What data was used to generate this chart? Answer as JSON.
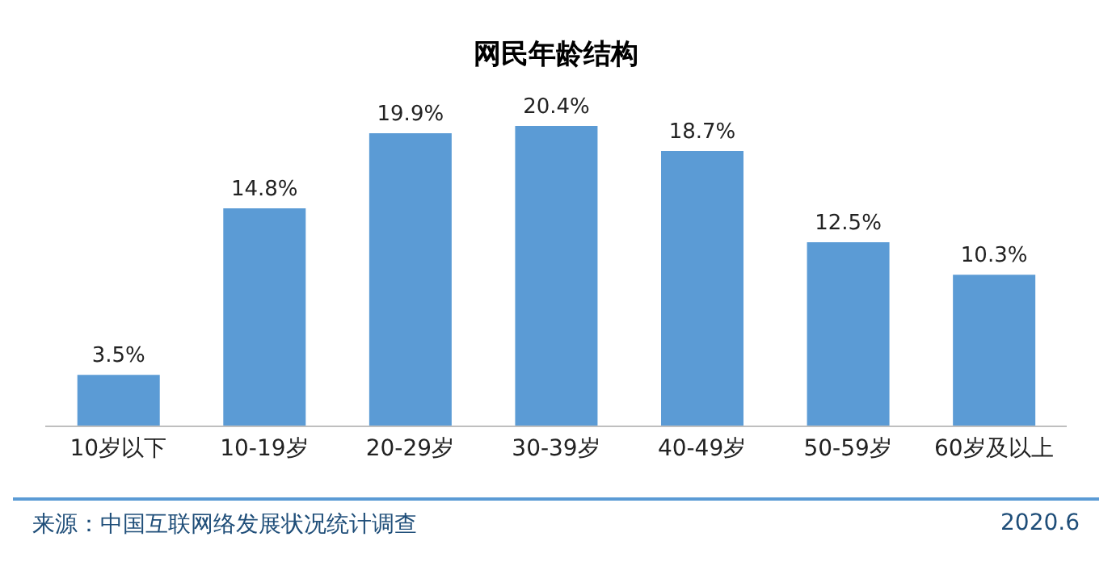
{
  "chart_data": {
    "type": "bar",
    "title": "网民年龄结构",
    "categories": [
      "10岁以下",
      "10-19岁",
      "20-29岁",
      "30-39岁",
      "40-49岁",
      "50-59岁",
      "60岁及以上"
    ],
    "values": [
      3.5,
      14.8,
      19.9,
      20.4,
      18.7,
      12.5,
      10.3
    ],
    "value_labels": [
      "3.5%",
      "14.8%",
      "19.9%",
      "20.4%",
      "18.7%",
      "12.5%",
      "10.3%"
    ],
    "color": "#5b9bd5",
    "annotations": [
      "来源：中国互联网络发展状况统计调查",
      "2020.6"
    ]
  }
}
